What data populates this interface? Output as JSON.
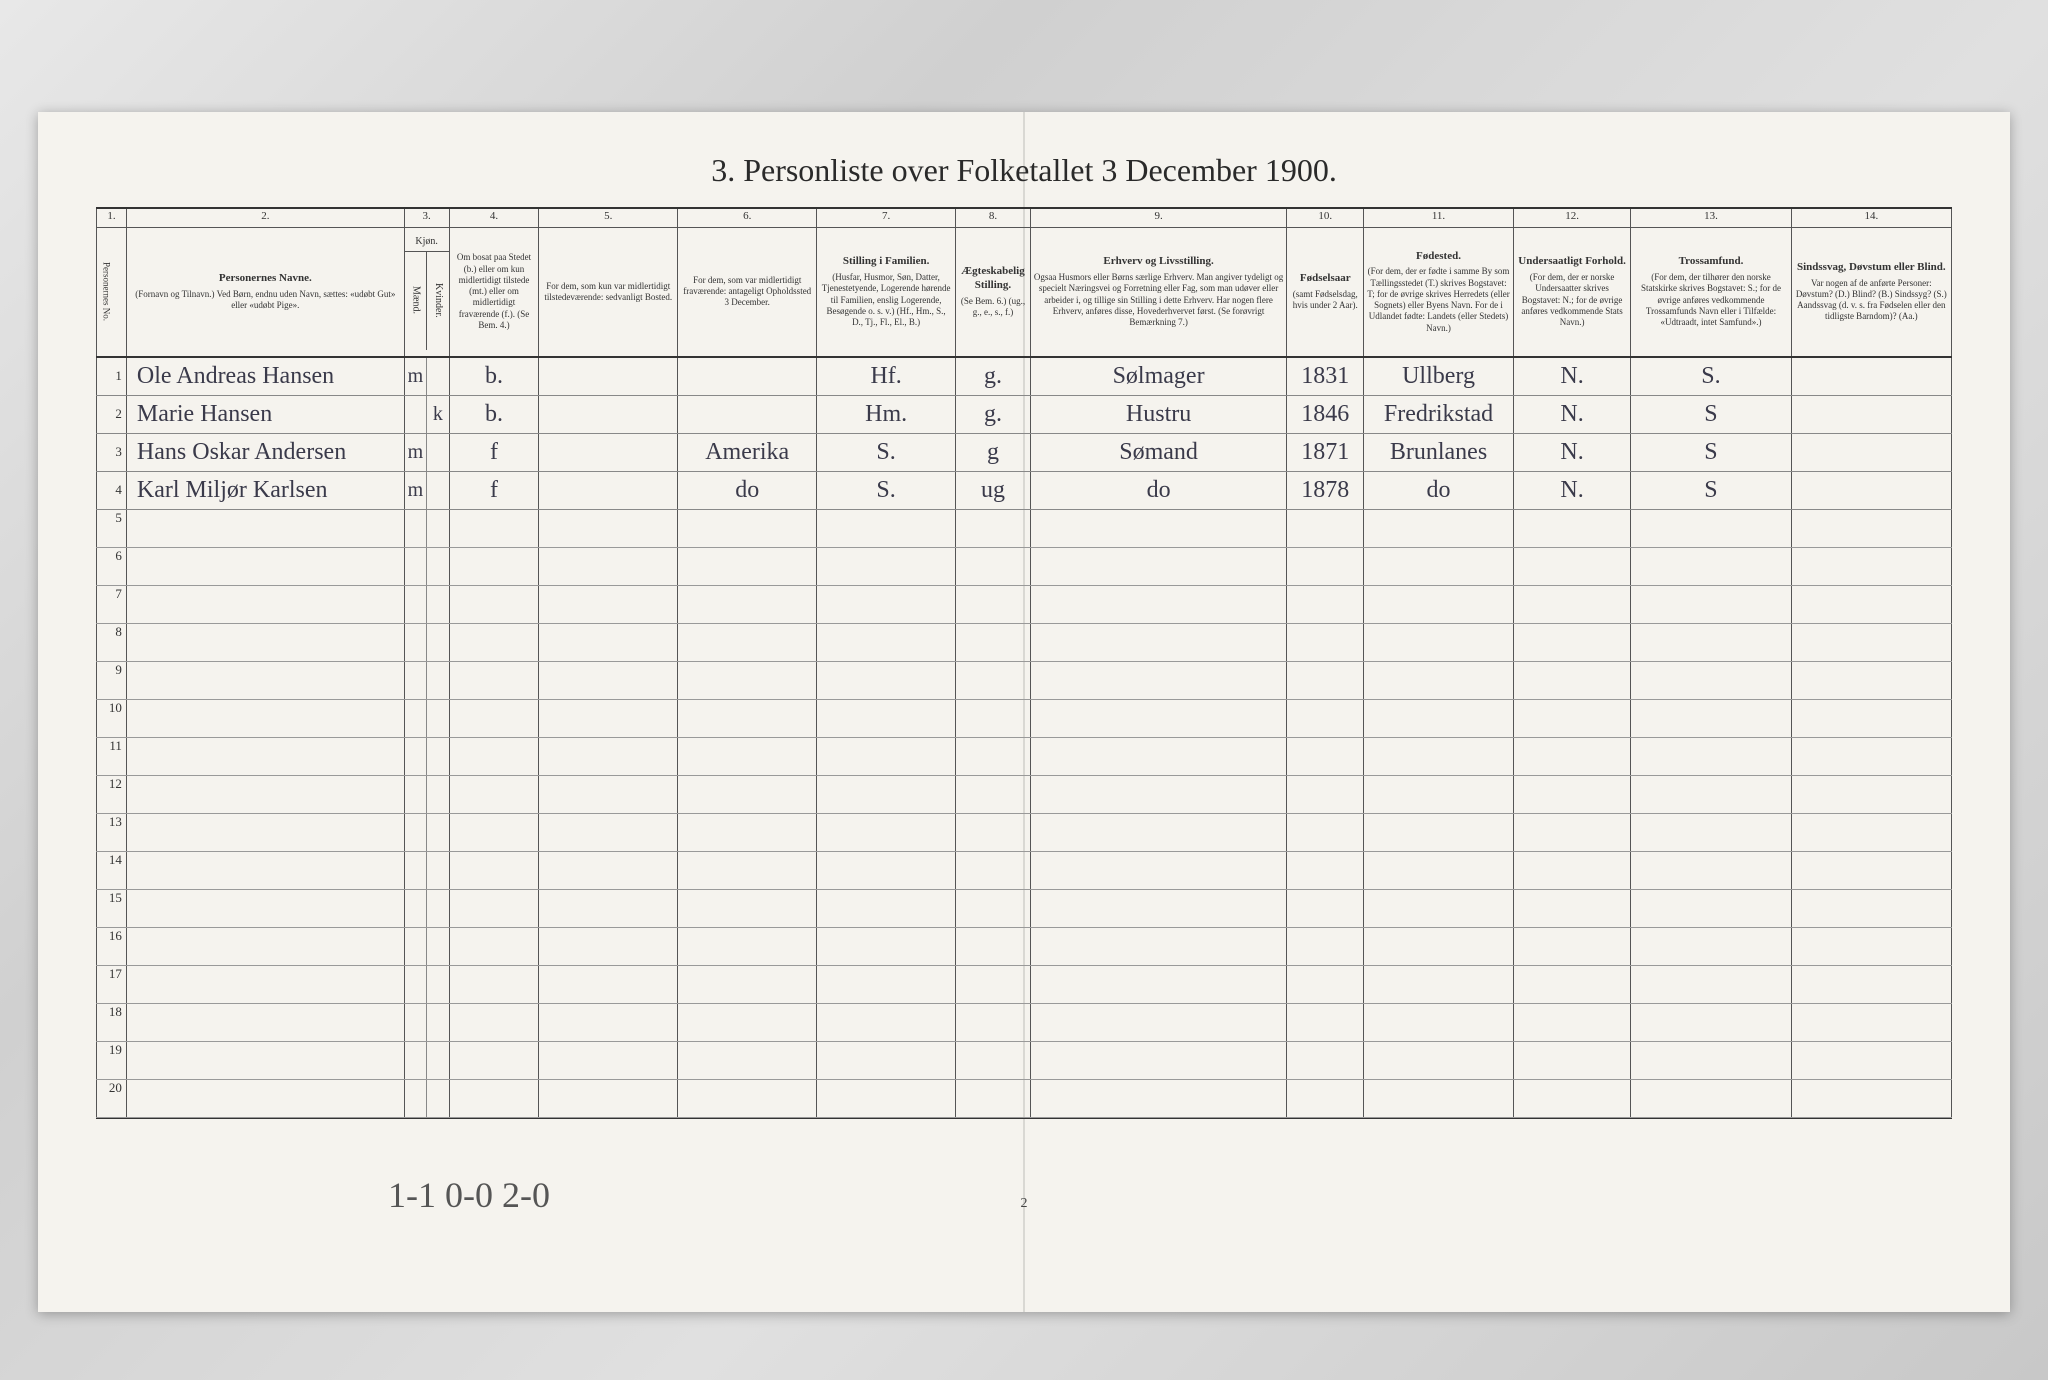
{
  "title": "3. Personliste over Folketallet 3 December 1900.",
  "pageNumber": "2",
  "footerNotes": "1-1  0-0  2-0",
  "colors": {
    "pageBg": "#d8d8d8",
    "paper": "#f5f3ee",
    "rule": "#333333",
    "handwriting": "#3a3a4a"
  },
  "columnNumbers": [
    "1.",
    "2.",
    "3.",
    "4.",
    "5.",
    "6.",
    "7.",
    "8.",
    "9.",
    "10.",
    "11.",
    "12.",
    "13.",
    "14."
  ],
  "headers": [
    {
      "main": "",
      "sub": "Personernes No."
    },
    {
      "main": "Personernes Navne.",
      "sub": "(Fornavn og Tilnavn.) Ved Børn, endnu uden Navn, sættes: «udøbt Gut» eller «udøbt Pige»."
    },
    {
      "main": "Kjøn.",
      "sub": "Mænd. / Kvinder. m. k."
    },
    {
      "main": "",
      "sub": "Om bosat paa Stedet (b.) eller om kun midlertidigt tilstede (mt.) eller om midlertidigt fraværende (f.). (Se Bem. 4.)"
    },
    {
      "main": "",
      "sub": "For dem, som kun var midlertidigt tilstedeværende: sedvanligt Bosted."
    },
    {
      "main": "",
      "sub": "For dem, som var midlertidigt fraværende: antageligt Opholdssted 3 December."
    },
    {
      "main": "Stilling i Familien.",
      "sub": "(Husfar, Husmor, Søn, Datter, Tjenestetyende, Logerende hørende til Familien, enslig Logerende, Besøgende o. s. v.) (Hf., Hm., S., D., Tj., Fl., El., B.)"
    },
    {
      "main": "Ægteskabelig Stilling.",
      "sub": "(Se Bem. 6.) (ug., g., e., s., f.)"
    },
    {
      "main": "Erhverv og Livsstilling.",
      "sub": "Ogsaa Husmors eller Børns særlige Erhverv. Man angiver tydeligt og specielt Næringsvei og Forretning eller Fag, som man udøver eller arbeider i, og tillige sin Stilling i dette Erhverv. Har nogen flere Erhverv, anføres disse, Hovederhvervet først. (Se forøvrigt Bemærkning 7.)"
    },
    {
      "main": "Fødselsaar",
      "sub": "(samt Fødselsdag, hvis under 2 Aar)."
    },
    {
      "main": "Fødested.",
      "sub": "(For dem, der er fødte i samme By som Tællingsstedet (T.) skrives Bogstavet: T; for de øvrige skrives Herredets (eller Sognets) eller Byens Navn. For de i Udlandet fødte: Landets (eller Stedets) Navn.)"
    },
    {
      "main": "Undersaatligt Forhold.",
      "sub": "(For dem, der er norske Undersaatter skrives Bogstavet: N.; for de øvrige anføres vedkommende Stats Navn.)"
    },
    {
      "main": "Trossamfund.",
      "sub": "(For dem, der tilhører den norske Statskirke skrives Bogstavet: S.; for de øvrige anføres vedkommende Trossamfunds Navn eller i Tilfælde: «Udtraadt, intet Samfund».)"
    },
    {
      "main": "Sindssvag, Døvstum eller Blind.",
      "sub": "Var nogen af de anførte Personer: Døvstum? (D.) Blind? (B.) Sindssyg? (S.) Aandssvag (d. v. s. fra Fødselen eller den tidligste Barndom)? (Aa.)"
    }
  ],
  "rows": [
    {
      "num": "1",
      "name": "Ole Andreas Hansen",
      "kjon_m": "m",
      "kjon_k": "",
      "status": "b.",
      "bosted": "",
      "opphold": "",
      "stilling": "Hf.",
      "aegte": "g.",
      "erhverv": "Sølmager",
      "aar": "1831",
      "fodested": "Ullberg",
      "forhold": "N.",
      "tros": "S.",
      "sinds": ""
    },
    {
      "num": "2",
      "name": "Marie Hansen",
      "kjon_m": "",
      "kjon_k": "k",
      "status": "b.",
      "bosted": "",
      "opphold": "",
      "stilling": "Hm.",
      "aegte": "g.",
      "erhverv": "Hustru",
      "aar": "1846",
      "fodested": "Fredrikstad",
      "forhold": "N.",
      "tros": "S",
      "sinds": ""
    },
    {
      "num": "3",
      "name": "Hans Oskar Andersen",
      "kjon_m": "m",
      "kjon_k": "",
      "status": "f",
      "bosted": "",
      "opphold": "Amerika",
      "stilling": "S.",
      "aegte": "g",
      "erhverv": "Sømand",
      "aar": "1871",
      "fodested": "Brunlanes",
      "forhold": "N.",
      "tros": "S",
      "sinds": ""
    },
    {
      "num": "4",
      "name": "Karl Miljør Karlsen",
      "kjon_m": "m",
      "kjon_k": "",
      "status": "f",
      "bosted": "",
      "opphold": "do",
      "stilling": "S.",
      "aegte": "ug",
      "erhverv": "do",
      "aar": "1878",
      "fodested": "do",
      "forhold": "N.",
      "tros": "S",
      "sinds": ""
    }
  ],
  "emptyRowStart": 5,
  "emptyRowEnd": 20
}
